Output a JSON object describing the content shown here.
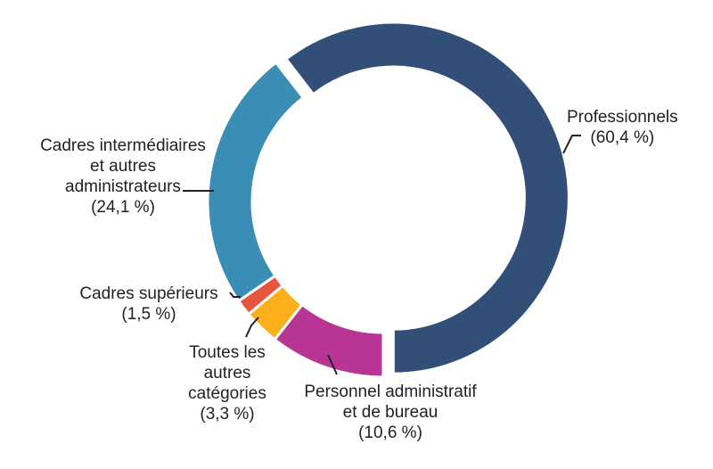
{
  "chart_data": {
    "type": "pie",
    "donut": true,
    "slices": [
      {
        "label": "Professionnels",
        "value_label": "(60,4 %)",
        "value": 60.4,
        "color": "#324f77"
      },
      {
        "label": "Personnel administratif\net de bureau",
        "value_label": "(10,6 %)",
        "value": 10.6,
        "color": "#b93593"
      },
      {
        "label": "Toutes les\nautres\ncatégories",
        "value_label": "(3,3 %)",
        "value": 3.3,
        "color": "#fbb01b"
      },
      {
        "label": "Cadres supérieurs",
        "value_label": "(1,5 %)",
        "value": 1.5,
        "color": "#e8553e"
      },
      {
        "label": "Cadres intermédiaires\net autres\nadministrateurs",
        "value_label": "(24,1 %)",
        "value": 24.1,
        "color": "#3a8db5"
      }
    ]
  }
}
